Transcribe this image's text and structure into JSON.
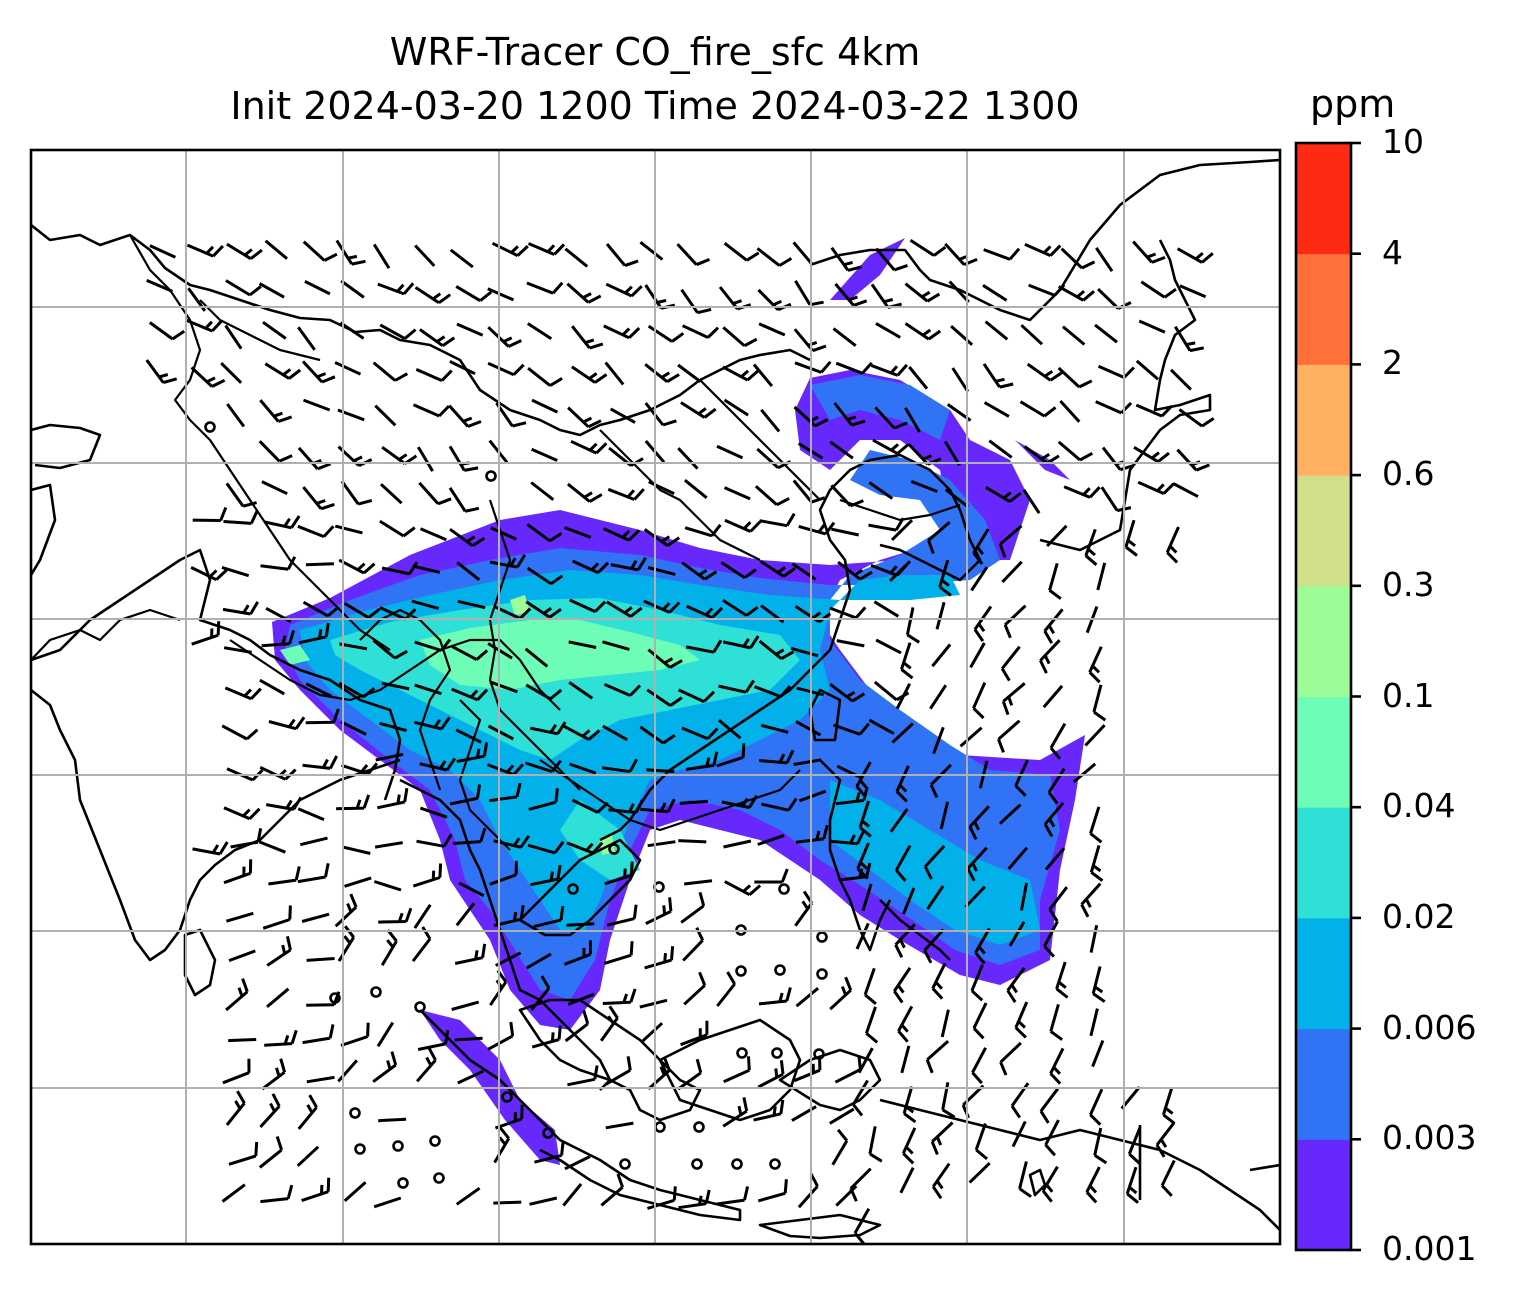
{
  "title": {
    "line1": "WRF-Tracer CO_fire_sfc 4km",
    "line2": "Init 2024-03-20 1200 Time 2024-03-22 1300"
  },
  "colorbar": {
    "units": "ppm",
    "levels": [
      "0.001",
      "0.003",
      "0.006",
      "0.02",
      "0.04",
      "0.1",
      "0.3",
      "0.6",
      "2",
      "4",
      "10"
    ],
    "colors": [
      "#6628fb",
      "#3073f4",
      "#03b1ea",
      "#2ee0d5",
      "#6dfdb6",
      "#9cfc97",
      "#cfe088",
      "#ffb061",
      "#ff7139",
      "#ff2a14"
    ]
  },
  "map": {
    "field": "CO_fire_sfc",
    "gridlines": true,
    "overlay": "wind barbs",
    "coastlines": true,
    "borders": true
  }
}
